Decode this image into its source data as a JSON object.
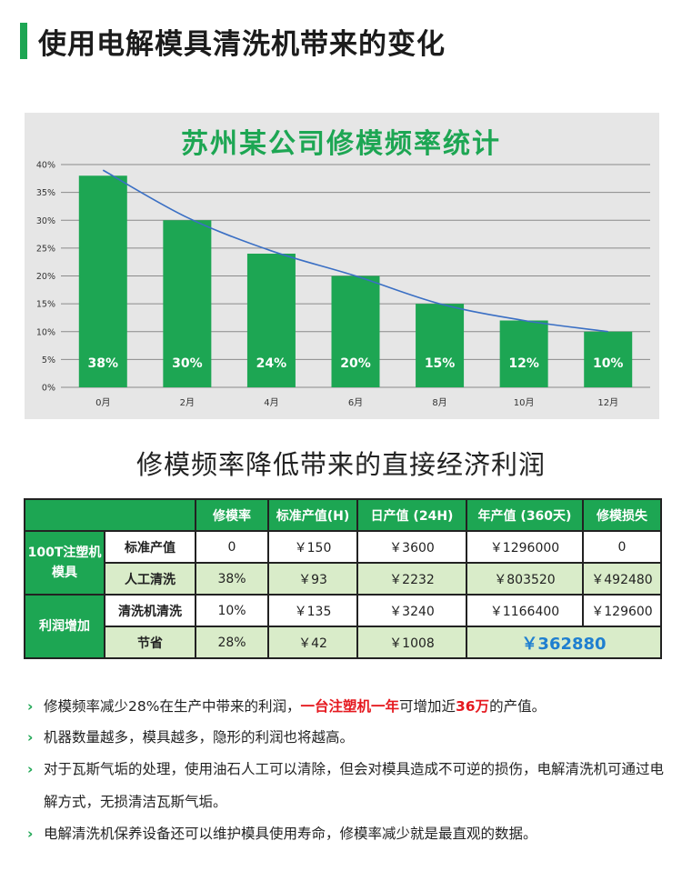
{
  "header": {
    "title": "使用电解模具清洗机带来的变化"
  },
  "chart_data": {
    "type": "bar",
    "title": "苏州某公司修模频率统计",
    "categories": [
      "0月",
      "2月",
      "4月",
      "6月",
      "8月",
      "10月",
      "12月"
    ],
    "values": [
      38,
      30,
      24,
      20,
      15,
      12,
      10
    ],
    "value_labels": [
      "38%",
      "30%",
      "24%",
      "20%",
      "15%",
      "12%",
      "10%"
    ],
    "trend_line": [
      39,
      30.5,
      24.5,
      20,
      15,
      12,
      10
    ],
    "ylim": [
      0,
      40
    ],
    "yticks": [
      "0%",
      "5%",
      "10%",
      "15%",
      "20%",
      "25%",
      "30%",
      "35%",
      "40%"
    ],
    "grid": true,
    "bar_color": "#1da653",
    "line_color": "#3a6fc4"
  },
  "section": {
    "title": "修模频率降低带来的直接经济利润"
  },
  "table": {
    "headers": [
      "修模率",
      "标准产值(H)",
      "日产值 (24H)",
      "年产值 (360天)",
      "修模损失"
    ],
    "group1": "100T注塑机模具",
    "group2": "利润增加",
    "rows": [
      {
        "label": "标准产值",
        "cells": [
          "0",
          "￥150",
          "￥3600",
          "￥1296000",
          "0"
        ]
      },
      {
        "label": "人工清洗",
        "cells": [
          "38%",
          "￥93",
          "￥2232",
          "￥803520",
          "￥492480"
        ]
      },
      {
        "label": "清洗机清洗",
        "cells": [
          "10%",
          "￥135",
          "￥3240",
          "￥1166400",
          "￥129600"
        ]
      },
      {
        "label": "节省",
        "cells": [
          "28%",
          "￥42",
          "￥1008"
        ],
        "total": "￥362880"
      }
    ]
  },
  "bullets": {
    "chevron": "›",
    "b1_pre": "修模频率减少28%在生产中带来的利润，",
    "b1_red": "一台注塑机一年",
    "b1_mid": "可增加近",
    "b1_red2": "36万",
    "b1_post": "的产值。",
    "b2": "机器数量越多，模具越多，隐形的利润也将越高。",
    "b3": "对于瓦斯气垢的处理，使用油石人工可以清除，但会对模具造成不可逆的损伤，电解清洗机可通过电解方式，无损清洁瓦斯气垢。",
    "b4": "电解清洗机保养设备还可以维护模具使用寿命，修模率减少就是最直观的数据。"
  }
}
